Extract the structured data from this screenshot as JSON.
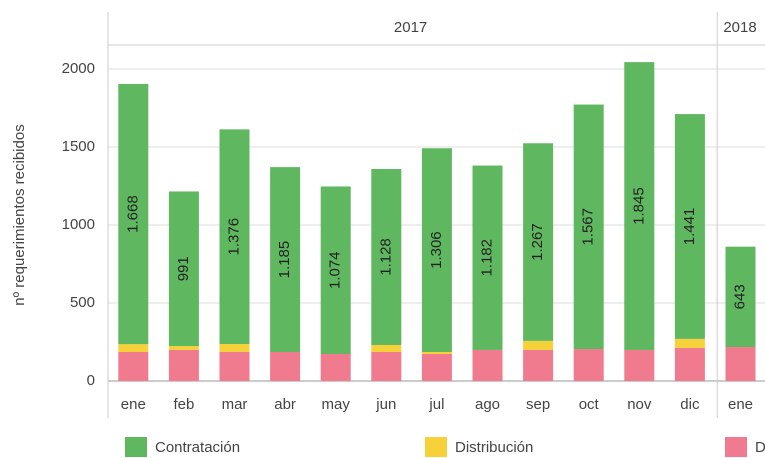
{
  "chart_data": {
    "type": "stacked_bar",
    "y_label": "nº requerimientos recibidos",
    "categories": [
      "ene",
      "feb",
      "mar",
      "abr",
      "may",
      "jun",
      "jul",
      "ago",
      "sep",
      "oct",
      "nov",
      "dic",
      "ene"
    ],
    "groups": [
      {
        "label": "2017",
        "count": 12
      },
      {
        "label": "2018",
        "count": 1
      }
    ],
    "series": [
      {
        "name": "Contratación",
        "color": "#5fb760",
        "values": [
          1668,
          991,
          1376,
          1185,
          1074,
          1128,
          1306,
          1182,
          1267,
          1567,
          1845,
          1441,
          643
        ],
        "value_labels": [
          "1.668",
          "991",
          "1.376",
          "1.185",
          "1.074",
          "1.128",
          "1.306",
          "1.182",
          "1.267",
          "1.567",
          "1.845",
          "1.441",
          "643"
        ]
      },
      {
        "name": "Distribución",
        "color": "#f6d13a",
        "values": [
          50,
          25,
          51,
          0,
          0,
          45,
          13,
          0,
          58,
          0,
          0,
          58,
          0
        ]
      },
      {
        "name": "D",
        "color": "#f07a8e",
        "values": [
          186,
          199,
          186,
          186,
          173,
          186,
          173,
          199,
          199,
          205,
          199,
          212,
          218
        ]
      }
    ],
    "ylim": [
      0,
      2150
    ],
    "yticks": [
      0,
      500,
      1000,
      1500,
      2000
    ],
    "grid": true
  }
}
